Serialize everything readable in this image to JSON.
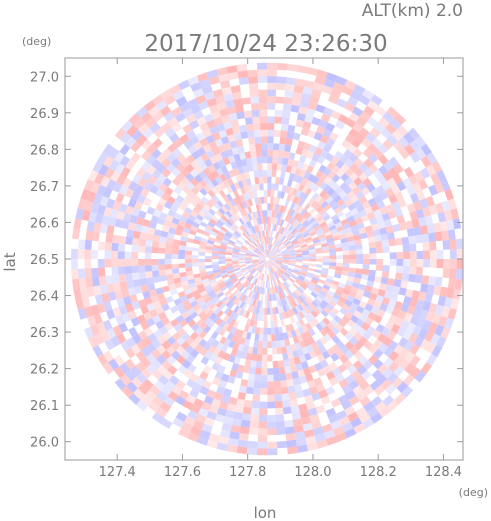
{
  "header": {
    "altitude_label": "ALT(km)  2.0",
    "datetime": "2017/10/24  23:26:30"
  },
  "chart_data": {
    "type": "heatmap",
    "title": "2017/10/24  23:26:30",
    "subtitle": "ALT(km)  2.0",
    "xlabel": "lon",
    "ylabel": "lat",
    "x_unit": "(deg)",
    "y_unit": "(deg)",
    "xlim": [
      127.24,
      128.46
    ],
    "ylim": [
      25.95,
      27.05
    ],
    "x_ticks": [
      "127.4",
      "127.6",
      "127.8",
      "128.0",
      "128.2",
      "128.4"
    ],
    "x_tick_values": [
      127.4,
      127.6,
      127.8,
      128.0,
      128.2,
      128.4
    ],
    "y_ticks": [
      "26.0",
      "26.1",
      "26.2",
      "26.3",
      "26.4",
      "26.5",
      "26.6",
      "26.7",
      "26.8",
      "26.9",
      "27.0"
    ],
    "y_tick_values": [
      26.0,
      26.1,
      26.2,
      26.3,
      26.4,
      26.5,
      26.6,
      26.7,
      26.8,
      26.9,
      27.0
    ],
    "radar_center": {
      "lon": 127.86,
      "lat": 26.5
    },
    "radar_radius_deg_lat": 0.55,
    "colors": {
      "positive": "#ff9a9a",
      "negative": "#a8a8ff",
      "frame": "#9a9a9a",
      "text": "#7a7a7a"
    }
  }
}
